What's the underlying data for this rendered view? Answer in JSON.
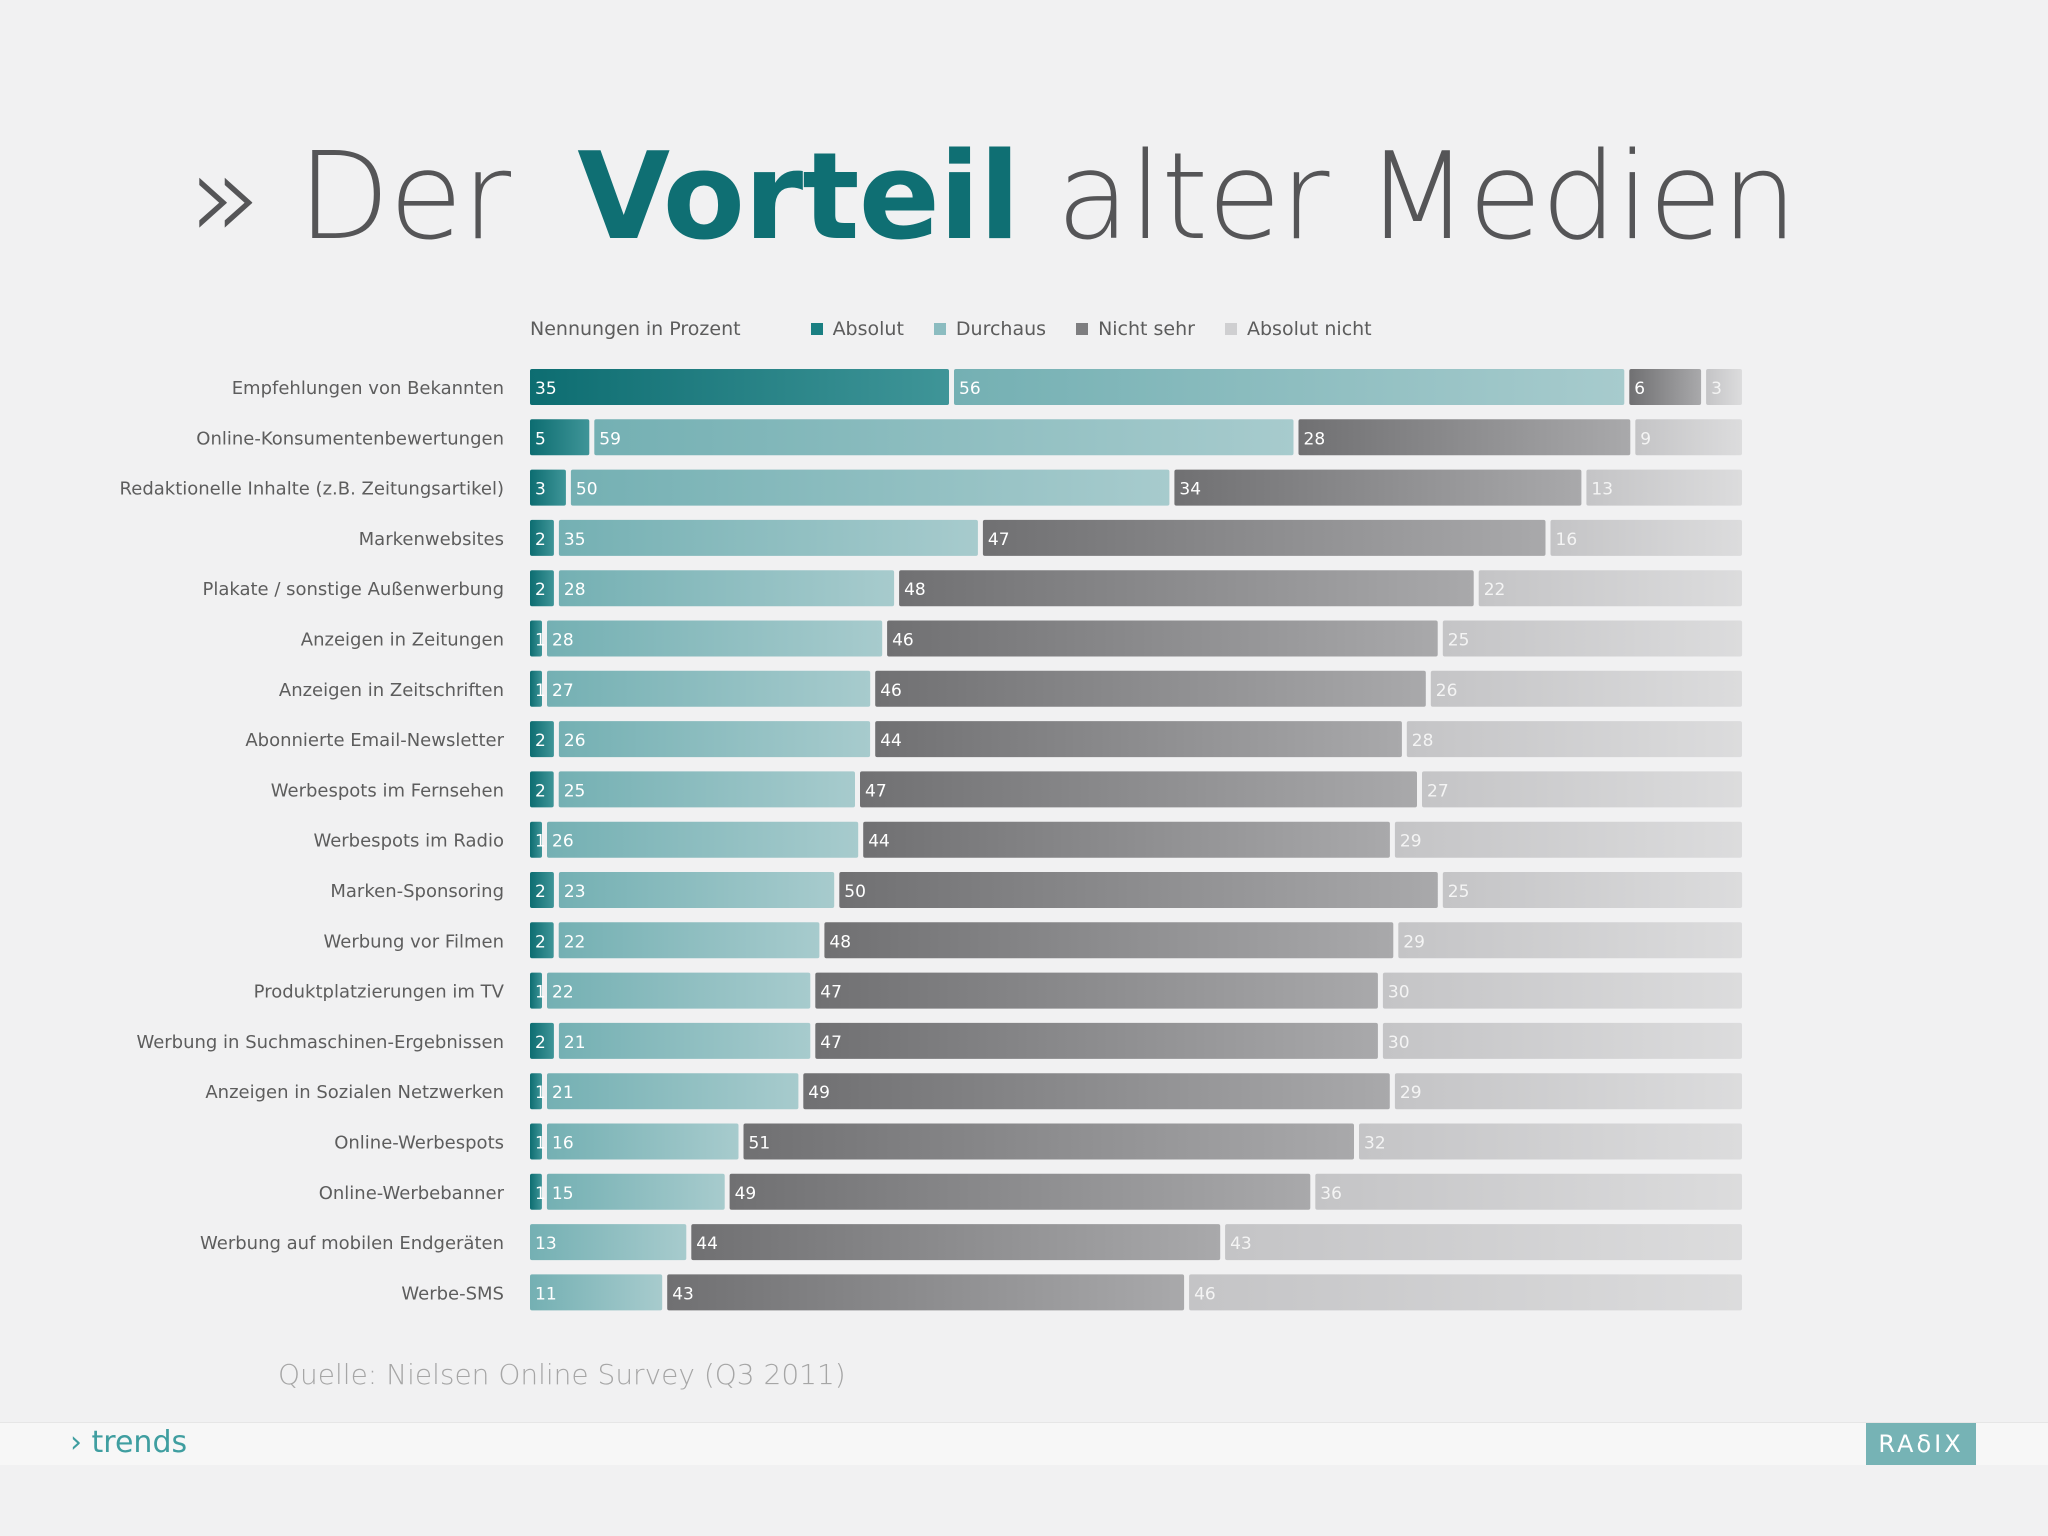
{
  "title": {
    "prefix": "» Der",
    "highlight": "Vorteil",
    "suffix": "alter Medien"
  },
  "legend": {
    "caption": "Nennungen in Prozent",
    "items": [
      {
        "label": "Absolut",
        "color": "#1a7f82"
      },
      {
        "label": "Durchaus",
        "color": "#8bbcc0"
      },
      {
        "label": "Nicht sehr",
        "color": "#7e7e80"
      },
      {
        "label": "Absolut nicht",
        "color": "#cfcfd1"
      }
    ]
  },
  "chart_data": {
    "type": "bar",
    "orientation": "horizontal",
    "stacked": true,
    "xlim": [
      0,
      100
    ],
    "categories": [
      "Empfehlungen von Bekannten",
      "Online-Konsumentenbewertungen",
      "Redaktionelle Inhalte (z.B. Zeitungsartikel)",
      "Markenwebsites",
      "Plakate / sonstige Außenwerbung",
      "Anzeigen in Zeitungen",
      "Anzeigen in Zeitschriften",
      "Abonnierte Email-Newsletter",
      "Werbespots im Fernsehen",
      "Werbespots im Radio",
      "Marken-Sponsoring",
      "Werbung vor Filmen",
      "Produktplatzierungen im TV",
      "Werbung in Suchmaschinen-Ergebnissen",
      "Anzeigen in Sozialen Netzwerken",
      "Online-Werbespots",
      "Online-Werbebanner",
      "Werbung auf mobilen Endgeräten",
      "Werbe-SMS"
    ],
    "series": [
      {
        "name": "Absolut",
        "values": [
          35,
          5,
          3,
          2,
          2,
          1,
          1,
          2,
          2,
          1,
          2,
          2,
          1,
          2,
          1,
          1,
          1,
          0,
          0
        ]
      },
      {
        "name": "Durchaus",
        "values": [
          56,
          59,
          50,
          35,
          28,
          28,
          27,
          26,
          25,
          26,
          23,
          22,
          22,
          21,
          21,
          16,
          15,
          13,
          11
        ]
      },
      {
        "name": "Nicht sehr",
        "values": [
          6,
          28,
          34,
          47,
          48,
          46,
          46,
          44,
          47,
          44,
          50,
          48,
          47,
          47,
          49,
          51,
          49,
          44,
          43
        ]
      },
      {
        "name": "Absolut nicht",
        "values": [
          3,
          9,
          13,
          16,
          22,
          25,
          26,
          28,
          27,
          29,
          25,
          29,
          30,
          30,
          29,
          32,
          36,
          43,
          46
        ]
      }
    ]
  },
  "source": "Quelle: Nielsen Online Survey (Q3 2011)",
  "footer": {
    "trends": "› trends",
    "logo": "RAδIX"
  }
}
